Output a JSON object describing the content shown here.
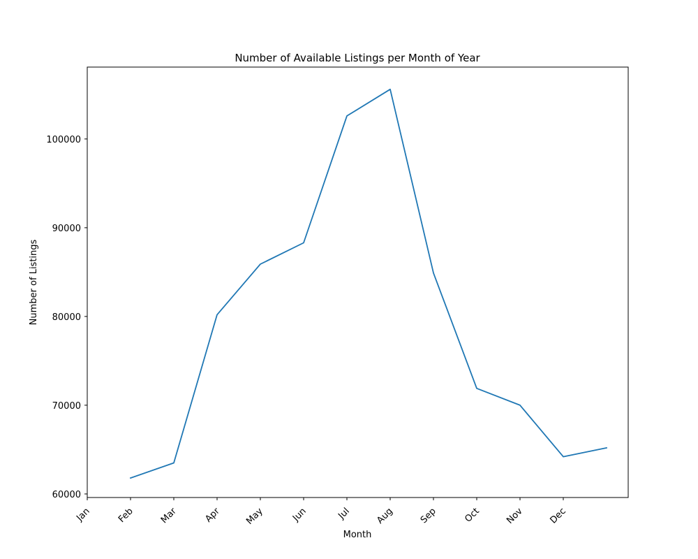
{
  "chart_data": {
    "type": "line",
    "title": "Number of Available Listings per Month of Year",
    "xlabel": "Month",
    "ylabel": "Number of Listings",
    "x_tick_labels": [
      "Jan",
      "Feb",
      "Mar",
      "Apr",
      "May",
      "Jun",
      "Jul",
      "Aug",
      "Sep",
      "Oct",
      "Nov",
      "Dec"
    ],
    "y_ticks": [
      60000,
      70000,
      80000,
      90000,
      100000
    ],
    "ylim": [
      59600,
      108100
    ],
    "xlim": [
      0,
      12.5
    ],
    "grid": false,
    "series": [
      {
        "color": "#1f77b4",
        "x": [
          1,
          2,
          3,
          4,
          5,
          6,
          7,
          8,
          9,
          10,
          11,
          12
        ],
        "y": [
          61800,
          63500,
          80200,
          85900,
          88300,
          102600,
          105600,
          84900,
          71900,
          70000,
          64200,
          65200
        ]
      }
    ]
  }
}
